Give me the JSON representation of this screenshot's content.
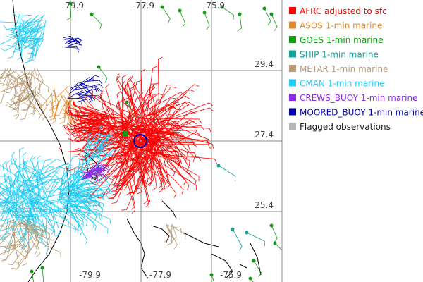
{
  "map": {
    "lon_labels_top": [
      "-79.9",
      "-77.9",
      "-75.9"
    ],
    "lon_labels_bottom": [
      "-79.9",
      "-77.9",
      "-75.9"
    ],
    "lat_labels": [
      "29.4",
      "27.4",
      "25.4"
    ]
  },
  "legend": [
    {
      "label": "AFRC adjusted to sfc",
      "color": "#ff0000"
    },
    {
      "label": "ASOS 1-min marine",
      "color": "#e08a2c"
    },
    {
      "label": "GOES 1-min marine",
      "color": "#119911"
    },
    {
      "label": "SHIP 1-min marine",
      "color": "#11a39b"
    },
    {
      "label": "METAR 1-min marine",
      "color": "#b89a72"
    },
    {
      "label": "CMAN 1-min marine",
      "color": "#22ccf4"
    },
    {
      "label": "CREWS_BUOY 1-min marine",
      "color": "#8a2be2"
    },
    {
      "label": "MOORED_BUOY 1-min marine",
      "color": "#0000aa"
    },
    {
      "label": "Flagged observations",
      "color": "#b8b8b8"
    }
  ]
}
